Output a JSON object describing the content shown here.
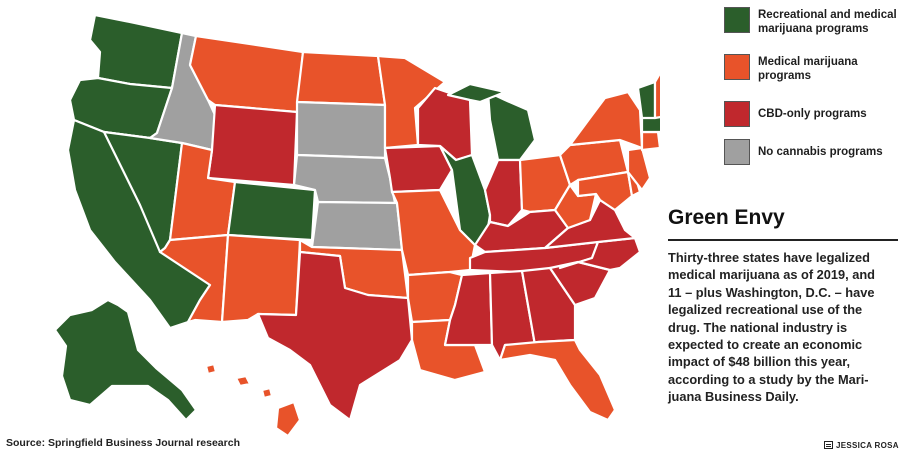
{
  "legend": [
    {
      "label_lines": [
        "Recreational and medical",
        "marijuana programs"
      ],
      "color": "#2b5e2b",
      "category": "recreational"
    },
    {
      "label_lines": [
        "Medical marijuana",
        "programs"
      ],
      "color": "#e8532a",
      "category": "medical"
    },
    {
      "label_lines": [
        "CBD-only programs"
      ],
      "color": "#c0282d",
      "category": "cbd"
    },
    {
      "label_lines": [
        "No cannabis programs"
      ],
      "color": "#a0a0a0",
      "category": "none"
    }
  ],
  "title": "Green Envy",
  "body_lines": [
    "Thirty-three states have legalized",
    "medical marijuana as of 2019, and",
    "11 – plus Washington, D.C. – have",
    "legalized recreational use of the",
    "drug. The national industry is",
    "expected to create an economic",
    "impact of $48 billion this year,",
    "according to a study by the Mari-",
    "juana Business Daily."
  ],
  "source": "Source: Springfield Business Journal research",
  "credit": "JESSICA ROSA",
  "states": {
    "WA": "recreational",
    "OR": "recreational",
    "CA": "recreational",
    "NV": "recreational",
    "CO": "recreational",
    "AK": "recreational",
    "MI": "recreational",
    "IL": "recreational",
    "ME": "recreational",
    "VT": "recreational",
    "MA": "recreational",
    "MT": "medical",
    "ND": "medical",
    "MN": "medical",
    "UT": "medical",
    "AZ": "medical",
    "NM": "medical",
    "OK": "medical",
    "AR": "medical",
    "LA": "medical",
    "MO": "medical",
    "FL": "medical",
    "OH": "medical",
    "PA": "medical",
    "NY": "medical",
    "WV": "medical",
    "NH": "medical",
    "CT": "medical",
    "RI": "medical",
    "NJ": "medical",
    "DE": "medical",
    "MD": "medical",
    "HI": "medical",
    "WY": "cbd",
    "WI": "cbd",
    "IA": "cbd",
    "IN": "cbd",
    "KY": "cbd",
    "TN": "cbd",
    "TX": "cbd",
    "MS": "cbd",
    "AL": "cbd",
    "GA": "cbd",
    "SC": "cbd",
    "NC": "cbd",
    "VA": "cbd",
    "ID": "none",
    "SD": "none",
    "NE": "none",
    "KS": "none"
  }
}
